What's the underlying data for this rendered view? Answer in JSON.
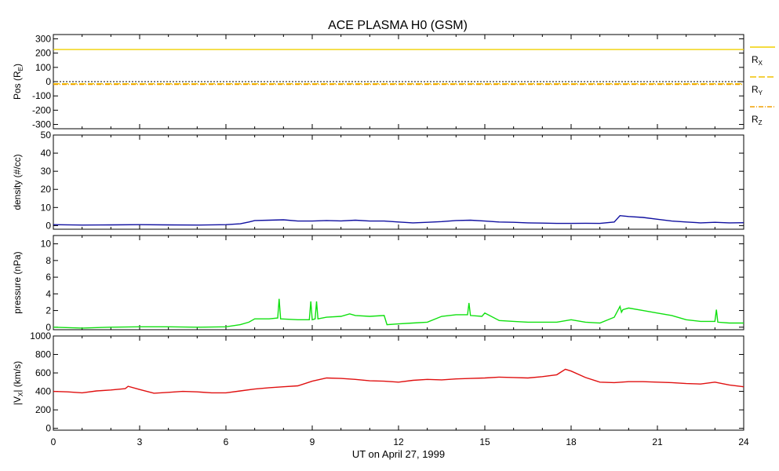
{
  "chart_data": {
    "type": "line",
    "title": "ACE PLASMA H0 (GSM)",
    "xlabel": "UT on April 27, 1999",
    "xlim": [
      0,
      24
    ],
    "xticks": [
      "0",
      "3",
      "6",
      "9",
      "12",
      "15",
      "18",
      "21",
      "24"
    ],
    "panels": [
      {
        "id": "pos",
        "ylabel_main": "Pos (R",
        "ylabel_sub": "E",
        "ylabel_tail": ")",
        "ylim": [
          -330,
          330
        ],
        "yticks": [
          "300",
          "200",
          "100",
          "0",
          "-100",
          "-200",
          "-300"
        ],
        "zero_line": true,
        "series": [
          {
            "name_main": "R",
            "name_sub": "X",
            "color": "#f0d000",
            "dash": "",
            "x": [
              0,
              24
            ],
            "y": [
              225,
              225
            ]
          },
          {
            "name_main": "R",
            "name_sub": "Y",
            "color": "#f0c000",
            "dash": "8,3",
            "x": [
              0,
              24
            ],
            "y": [
              -15,
              -15
            ]
          },
          {
            "name_main": "R",
            "name_sub": "Z",
            "color": "#f0a000",
            "dash": "6,2,1,2",
            "x": [
              0,
              24
            ],
            "y": [
              -20,
              -20
            ]
          }
        ]
      },
      {
        "id": "density",
        "ylabel_main": "density (#/cc)",
        "ylim": [
          -2,
          50
        ],
        "yticks": [
          "50",
          "40",
          "30",
          "20",
          "10",
          "0"
        ],
        "series": [
          {
            "color": "#1010a0",
            "dash": "",
            "x": [
              0,
              1,
              2,
              3,
              4,
              5,
              6,
              6.5,
              6.8,
              7,
              7.5,
              8,
              8.5,
              9,
              9.5,
              10,
              10.5,
              11,
              11.5,
              12,
              12.5,
              13,
              13.5,
              14,
              14.5,
              15,
              15.5,
              16,
              16.5,
              17,
              17.5,
              18,
              18.5,
              19,
              19.5,
              19.7,
              20,
              20.5,
              21,
              21.5,
              22,
              22.5,
              23,
              23.5,
              24
            ],
            "y": [
              0.5,
              0.3,
              0.4,
              0.5,
              0.4,
              0.3,
              0.5,
              1,
              2,
              2.8,
              3,
              3.2,
              2.5,
              2.5,
              2.8,
              2.6,
              3,
              2.5,
              2.5,
              2,
              1.5,
              1.8,
              2.2,
              2.8,
              3,
              2.5,
              2,
              1.8,
              1.5,
              1.4,
              1.2,
              1.2,
              1.3,
              1.2,
              2,
              5.5,
              5,
              4.5,
              3.5,
              2.5,
              2,
              1.5,
              1.8,
              1.5,
              1.6
            ]
          }
        ]
      },
      {
        "id": "pressure",
        "ylabel_main": "pressure (nPa)",
        "ylim": [
          -0.3,
          11
        ],
        "yticks": [
          "10",
          "8",
          "6",
          "4",
          "2",
          "0"
        ],
        "series": [
          {
            "color": "#10e010",
            "dash": "",
            "x": [
              0,
              1,
              2,
              3,
              4,
              5,
              6,
              6.5,
              6.8,
              7,
              7.5,
              7.8,
              7.85,
              7.9,
              8.5,
              8.9,
              8.95,
              9,
              9.1,
              9.15,
              9.2,
              9.5,
              10,
              10.3,
              10.5,
              11,
              11.5,
              11.6,
              12,
              12.5,
              13,
              13.5,
              14,
              14.4,
              14.45,
              14.5,
              14.9,
              15,
              15.5,
              16,
              16.5,
              17,
              17.5,
              18,
              18.5,
              19,
              19.5,
              19.7,
              19.75,
              19.8,
              20,
              20.5,
              21,
              21.5,
              22,
              22.5,
              23,
              23.05,
              23.1,
              23.5,
              24
            ],
            "y": [
              0,
              -0.1,
              0,
              0.05,
              0.05,
              0,
              0.05,
              0.3,
              0.6,
              1,
              1,
              1.1,
              3.4,
              1,
              0.9,
              0.9,
              3.1,
              0.9,
              1,
              3.1,
              1,
              1.2,
              1.3,
              1.6,
              1.4,
              1.3,
              1.4,
              0.3,
              0.4,
              0.5,
              0.6,
              1.3,
              1.5,
              1.5,
              2.9,
              1.4,
              1.3,
              1.7,
              0.8,
              0.7,
              0.6,
              0.6,
              0.6,
              0.9,
              0.6,
              0.5,
              1.2,
              2.5,
              1.8,
              2.1,
              2.3,
              2,
              1.7,
              1.4,
              0.9,
              0.7,
              0.7,
              2.1,
              0.6,
              0.5,
              0.5
            ]
          }
        ]
      },
      {
        "id": "vx",
        "ylabel_main": "|V",
        "ylabel_sub": "X",
        "ylabel_tail": "| (km/s)",
        "ylim": [
          -20,
          1000
        ],
        "yticks": [
          "1000",
          "800",
          "600",
          "400",
          "200",
          "0"
        ],
        "series": [
          {
            "color": "#e01010",
            "dash": "",
            "x": [
              0,
              0.5,
              1,
              1.5,
              2,
              2.5,
              2.6,
              3,
              3.5,
              4,
              4.5,
              5,
              5.5,
              6,
              6.5,
              7,
              7.5,
              8,
              8.5,
              9,
              9.5,
              10,
              10.5,
              11,
              11.5,
              12,
              12.5,
              13,
              13.5,
              14,
              14.5,
              15,
              15.5,
              16,
              16.5,
              17,
              17.5,
              17.8,
              18,
              18.5,
              19,
              19.5,
              20,
              20.5,
              21,
              21.5,
              22,
              22.5,
              23,
              23.5,
              24
            ],
            "y": [
              400,
              395,
              385,
              405,
              415,
              430,
              455,
              420,
              380,
              390,
              400,
              395,
              385,
              385,
              405,
              425,
              440,
              450,
              460,
              510,
              545,
              540,
              530,
              515,
              510,
              500,
              520,
              530,
              525,
              535,
              540,
              545,
              555,
              550,
              545,
              560,
              580,
              640,
              620,
              550,
              500,
              495,
              505,
              505,
              500,
              495,
              485,
              480,
              500,
              470,
              450
            ]
          }
        ]
      }
    ],
    "legend": {
      "position": "right-of-top-panel"
    }
  }
}
